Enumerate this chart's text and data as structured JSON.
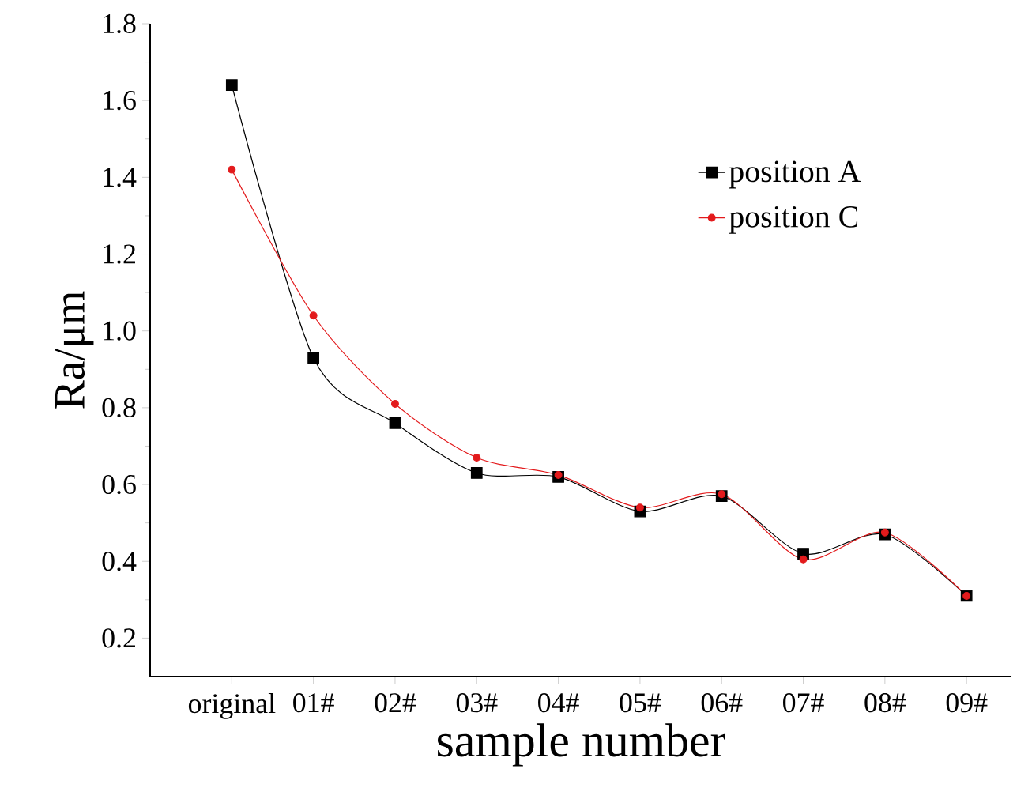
{
  "chart_data": {
    "type": "line",
    "xlabel": "sample number",
    "ylabel": "Ra/μm",
    "categories": [
      "original",
      "01#",
      "02#",
      "03#",
      "04#",
      "05#",
      "06#",
      "07#",
      "08#",
      "09#"
    ],
    "series": [
      {
        "name": "position A",
        "color": "#000000",
        "marker": "square",
        "values": [
          1.64,
          0.93,
          0.76,
          0.63,
          0.62,
          0.53,
          0.57,
          0.42,
          0.47,
          0.31
        ]
      },
      {
        "name": "position C",
        "color": "#e31a1c",
        "marker": "circle",
        "values": [
          1.42,
          1.04,
          0.81,
          0.67,
          0.625,
          0.54,
          0.575,
          0.405,
          0.475,
          0.31
        ]
      }
    ],
    "ylim": [
      0.1,
      1.8
    ],
    "yticks": [
      0.2,
      0.4,
      0.6,
      0.8,
      {
        "value": 1.0,
        "label": "1.0"
      },
      1.2,
      1.4,
      1.6,
      1.8
    ],
    "legend": "top right",
    "grid": false,
    "line_style": "solid"
  }
}
